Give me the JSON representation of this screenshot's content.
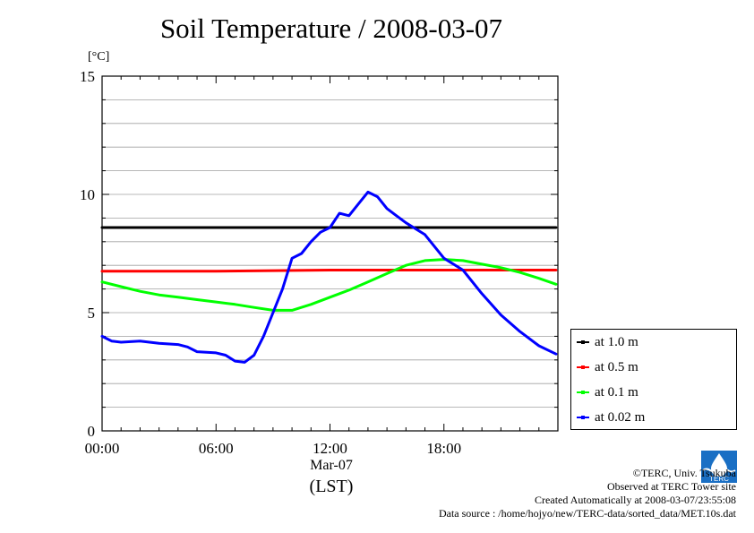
{
  "chart_data": {
    "type": "line",
    "title": "Soil Temperature / 2008-03-07",
    "ylabel": "[°C]",
    "xlabel": "(LST)",
    "date_label": "Mar-07",
    "xlim": [
      0,
      24
    ],
    "ylim": [
      0,
      15
    ],
    "x_ticks": [
      {
        "value": 0,
        "label": "00:00"
      },
      {
        "value": 6,
        "label": "06:00"
      },
      {
        "value": 12,
        "label": "12:00"
      },
      {
        "value": 18,
        "label": "18:00"
      }
    ],
    "y_ticks": [
      {
        "value": 0,
        "label": "0"
      },
      {
        "value": 5,
        "label": "5"
      },
      {
        "value": 10,
        "label": "10"
      },
      {
        "value": 15,
        "label": "15"
      }
    ],
    "grid": true,
    "legend_position": "bottom-right",
    "series": [
      {
        "name": "at 1.0 m",
        "color": "#000000",
        "x": [
          0,
          6,
          12,
          18,
          23.9
        ],
        "y": [
          8.6,
          8.6,
          8.6,
          8.6,
          8.6
        ]
      },
      {
        "name": "at 0.5 m",
        "color": "#ff0000",
        "x": [
          0,
          6,
          12,
          18,
          23.9
        ],
        "y": [
          6.75,
          6.75,
          6.8,
          6.8,
          6.8
        ]
      },
      {
        "name": "at 0.1 m",
        "color": "#00ff00",
        "x": [
          0,
          1,
          2,
          3,
          4,
          5,
          6,
          7,
          8,
          9,
          10,
          11,
          12,
          13,
          14,
          15,
          16,
          17,
          18,
          19,
          20,
          21,
          22,
          23,
          23.9
        ],
        "y": [
          6.3,
          6.1,
          5.9,
          5.75,
          5.65,
          5.55,
          5.45,
          5.35,
          5.22,
          5.1,
          5.1,
          5.35,
          5.65,
          5.95,
          6.3,
          6.65,
          7.0,
          7.2,
          7.25,
          7.2,
          7.05,
          6.9,
          6.7,
          6.45,
          6.2
        ]
      },
      {
        "name": "at 0.02 m",
        "color": "#0000ff",
        "x": [
          0,
          0.5,
          1,
          2,
          3,
          4,
          4.5,
          5,
          6,
          6.5,
          7,
          7.5,
          8,
          8.5,
          9,
          9.5,
          10,
          10.5,
          11,
          11.5,
          12,
          12.5,
          13,
          13.5,
          14,
          14.5,
          15,
          15.5,
          16,
          17,
          18,
          19,
          20,
          21,
          22,
          23,
          23.9
        ],
        "y": [
          4.0,
          3.8,
          3.75,
          3.8,
          3.7,
          3.65,
          3.55,
          3.35,
          3.3,
          3.2,
          2.95,
          2.9,
          3.2,
          4.0,
          5.0,
          6.0,
          7.3,
          7.5,
          8.0,
          8.4,
          8.6,
          9.2,
          9.1,
          9.6,
          10.1,
          9.9,
          9.4,
          9.1,
          8.8,
          8.3,
          7.3,
          6.8,
          5.8,
          4.9,
          4.2,
          3.6,
          3.25
        ]
      }
    ]
  },
  "credits": {
    "copyright": "©TERC, Univ. Tsukuba",
    "site": "Observed at TERC Tower site",
    "created": "Created Automatically at 2008-03-07/23:55:08",
    "source": "Data source : /home/hojyo/new/TERC-data/sorted_data/MET.10s.dat"
  },
  "logo": {
    "text": "TERC",
    "color": "#1a6fc4"
  }
}
